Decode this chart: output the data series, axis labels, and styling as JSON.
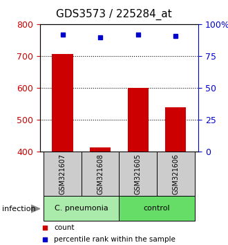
{
  "title": "GDS3573 / 225284_at",
  "samples": [
    "GSM321607",
    "GSM321608",
    "GSM321605",
    "GSM321606"
  ],
  "bar_values": [
    707,
    414,
    602,
    540
  ],
  "percentile_values": [
    92,
    90,
    92,
    91
  ],
  "ylim_left": [
    400,
    800
  ],
  "ylim_right": [
    0,
    100
  ],
  "yticks_left": [
    400,
    500,
    600,
    700,
    800
  ],
  "yticks_right": [
    0,
    25,
    50,
    75,
    100
  ],
  "ytick_labels_right": [
    "0",
    "25",
    "50",
    "75",
    "100%"
  ],
  "grid_values": [
    500,
    600,
    700
  ],
  "bar_color": "#CC0000",
  "dot_color": "#0000CC",
  "bar_width": 0.55,
  "groups": [
    {
      "label": "C. pneumonia",
      "color": "#aaeaaa",
      "samples": [
        0,
        1
      ]
    },
    {
      "label": "control",
      "color": "#66dd66",
      "samples": [
        2,
        3
      ]
    }
  ],
  "infection_label": "infection",
  "legend_items": [
    {
      "color": "#CC0000",
      "label": "count"
    },
    {
      "color": "#0000CC",
      "label": "percentile rank within the sample"
    }
  ],
  "title_fontsize": 11,
  "axis_label_color_left": "#CC0000",
  "axis_label_color_right": "#0000CC",
  "sample_box_color": "#cccccc",
  "fig_width": 3.3,
  "fig_height": 3.54,
  "dpi": 100
}
